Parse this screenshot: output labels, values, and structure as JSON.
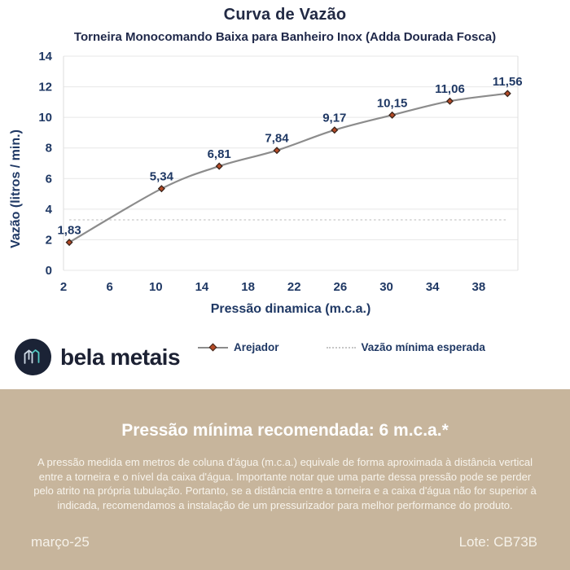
{
  "header": {
    "title": "Curva de Vazão",
    "subtitle": "Torneira Monocomando Baixa para Banheiro Inox (Adda Dourada Fosca)"
  },
  "chart_data": {
    "type": "line",
    "title": "Curva de Vazão",
    "subtitle": "Torneira Monocomando Baixa para Banheiro Inox (Adda Dourada Fosca)",
    "xlabel": "Pressão dinamica (m.c.a.)",
    "ylabel": "Vazão (litros / min.)",
    "xlim": [
      2,
      41.4
    ],
    "ylim": [
      0,
      14
    ],
    "xticks": [
      2,
      6,
      10,
      14,
      18,
      22,
      26,
      30,
      34,
      38
    ],
    "yticks": [
      0,
      2,
      4,
      6,
      8,
      10,
      12,
      14
    ],
    "grid": "horizontal",
    "legend_position": "bottom",
    "series": [
      {
        "name": "Arejador",
        "type": "smooth-line",
        "marker": "diamond",
        "x": [
          2.5,
          10.5,
          15.5,
          20.5,
          25.5,
          30.5,
          35.5,
          40.5
        ],
        "y": [
          1.83,
          5.34,
          6.81,
          7.84,
          9.17,
          10.15,
          11.06,
          11.56
        ],
        "labels": [
          "1,83",
          "5,34",
          "6,81",
          "7,84",
          "9,17",
          "10,15",
          "11,06",
          "11,56"
        ]
      },
      {
        "name": "Vazão mínima esperada",
        "type": "dashed-horizontal",
        "value": 3.3,
        "x_range": [
          2.5,
          40.5
        ]
      }
    ]
  },
  "legend": {
    "items": [
      {
        "label": "Arejador",
        "swatch": "line-diamond"
      },
      {
        "label": "Vazão mínima esperada",
        "swatch": "dotted-line"
      }
    ]
  },
  "branding": {
    "logo_text": "bela metais",
    "logo_icon": "isometric-m-icon"
  },
  "footer": {
    "heading": "Pressão mínima recomendada: 6 m.c.a.*",
    "body": "A pressão medida em metros de coluna d'água (m.c.a.) equivale de forma aproximada à distância vertical entre a torneira e o nível da caixa d'água. Importante notar que uma parte dessa pressão pode se perder pelo atrito na própria tubulação. Portanto, se a distância entre a torneira e a caixa d'água não for superior à indicada, recomendamos a instalação de um pressurizador para melhor performance do produto.",
    "date": "março-25",
    "lot": "Lote: CB73B"
  },
  "colors": {
    "navy": "#1f3864",
    "title_ink": "#222a44",
    "tan": "#c7b59c",
    "line_gray": "#8c8c8c",
    "grid_gray": "#e7e7e7",
    "border_gray": "#dedede",
    "dashed_gray": "#c6c6c6",
    "marker_fill": "#b54a26",
    "marker_stroke": "#3a241b",
    "footer_text": "#ffffff"
  }
}
